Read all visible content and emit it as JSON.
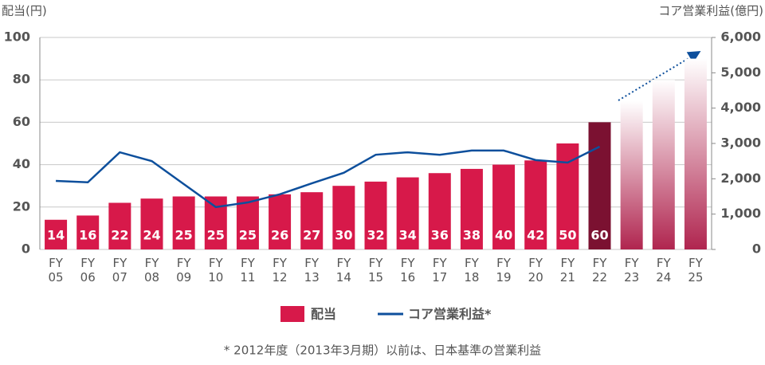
{
  "chart_data": {
    "type": "bar_line",
    "y_axis_label": "配当(円)",
    "y2_axis_label": "コア営業利益(億円)",
    "footnote": "* 2012年度（2013年3月期）以前は、日本基準の営業利益",
    "categories": [
      "FY\n05",
      "FY\n06",
      "FY\n07",
      "FY\n08",
      "FY\n09",
      "FY\n10",
      "FY\n11",
      "FY\n12",
      "FY\n13",
      "FY\n14",
      "FY\n15",
      "FY\n16",
      "FY\n17",
      "FY\n18",
      "FY\n19",
      "FY\n20",
      "FY\n21",
      "FY\n22",
      "FY\n23",
      "FY\n24",
      "FY\n25"
    ],
    "ylim": [
      0,
      100
    ],
    "yticks": [
      0,
      20,
      40,
      60,
      80,
      100
    ],
    "y2lim": [
      0,
      6000
    ],
    "y2ticks": [
      0,
      {
        "value": 1000,
        "label": "1,000"
      },
      {
        "value": 2000,
        "label": "2,000"
      },
      {
        "value": 3000,
        "label": "3,000"
      },
      {
        "value": 4000,
        "label": "4,000"
      },
      {
        "value": 5000,
        "label": "5,000"
      },
      {
        "value": 6000,
        "label": "6,000"
      }
    ],
    "grid": true,
    "series": [
      {
        "name": "配当",
        "type": "bar",
        "color": "#d7194a",
        "values": [
          14,
          16,
          22,
          24,
          25,
          25,
          25,
          26,
          27,
          30,
          32,
          34,
          36,
          38,
          40,
          42,
          50,
          60,
          70,
          80,
          90
        ],
        "value_labels": [
          14,
          16,
          22,
          24,
          25,
          25,
          25,
          26,
          27,
          30,
          32,
          34,
          36,
          38,
          40,
          42,
          50,
          60,
          null,
          null,
          null
        ],
        "bar_colors": [
          "#d7194a",
          "#d7194a",
          "#d7194a",
          "#d7194a",
          "#d7194a",
          "#d7194a",
          "#d7194a",
          "#d7194a",
          "#d7194a",
          "#d7194a",
          "#d7194a",
          "#d7194a",
          "#d7194a",
          "#d7194a",
          "#d7194a",
          "#d7194a",
          "#d7194a",
          "#7b1131",
          "url(#fc)",
          "url(#fc)",
          "url(#fc)"
        ]
      },
      {
        "name": "コア営業利益*",
        "type": "line",
        "axis": "y2",
        "color": "#0d4f9c",
        "values": [
          1940,
          1900,
          2750,
          2500,
          1850,
          1200,
          1330,
          1560,
          1870,
          2170,
          2680,
          2750,
          2680,
          2800,
          2800,
          2530,
          2460,
          2910,
          null,
          null,
          null
        ]
      }
    ]
  }
}
